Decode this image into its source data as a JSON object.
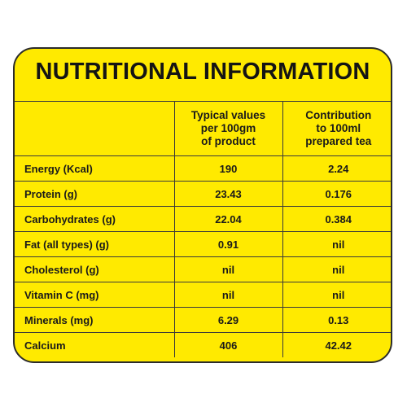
{
  "title": "NUTRITIONAL INFORMATION",
  "colors": {
    "background": "#ffea00",
    "border": "#2b2b2b",
    "text": "#1a1a1a"
  },
  "columns": {
    "per_100gm": [
      "Typical values",
      "per 100gm",
      "of product"
    ],
    "per_100ml": [
      "Contribution",
      "to 100ml",
      "prepared tea"
    ]
  },
  "rows": [
    {
      "nutrient": "Energy (Kcal)",
      "per_100gm": "190",
      "per_100ml": "2.24"
    },
    {
      "nutrient": "Protein (g)",
      "per_100gm": "23.43",
      "per_100ml": "0.176"
    },
    {
      "nutrient": "Carbohydrates (g)",
      "per_100gm": "22.04",
      "per_100ml": "0.384"
    },
    {
      "nutrient": "Fat (all types) (g)",
      "per_100gm": "0.91",
      "per_100ml": "nil"
    },
    {
      "nutrient": "Cholesterol (g)",
      "per_100gm": "nil",
      "per_100ml": "nil"
    },
    {
      "nutrient": "Vitamin C (mg)",
      "per_100gm": "nil",
      "per_100ml": "nil"
    },
    {
      "nutrient": "Minerals (mg)",
      "per_100gm": "6.29",
      "per_100ml": "0.13"
    },
    {
      "nutrient": "Calcium",
      "per_100gm": "406",
      "per_100ml": "42.42"
    }
  ]
}
